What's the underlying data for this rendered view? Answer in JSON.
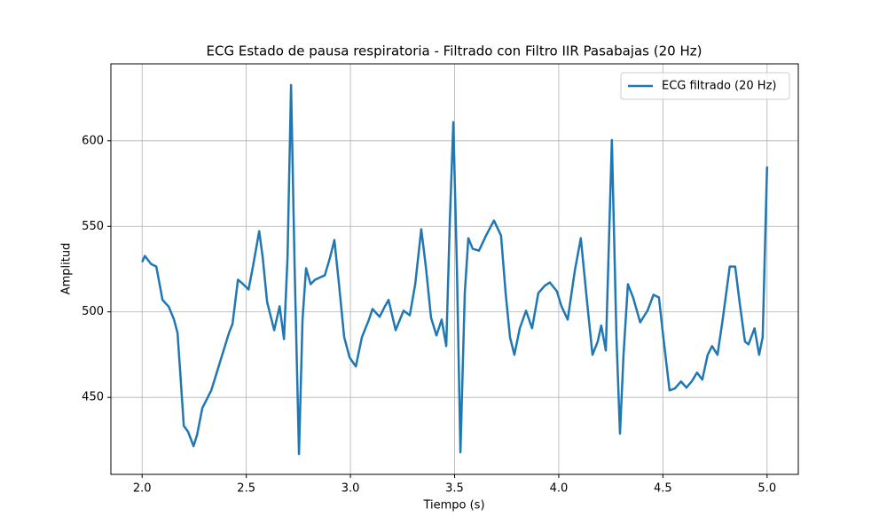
{
  "chart_data": {
    "type": "line",
    "title": "ECG Estado de pausa respiratoria - Filtrado con Filtro IIR Pasabajas (20 Hz)",
    "x_label": "Tiempo (s)",
    "y_label": "Amplitud",
    "xlim": [
      1.85,
      5.15
    ],
    "ylim": [
      405,
      645
    ],
    "xticks": [
      {
        "value": 2,
        "label": "2.0"
      },
      2.5,
      {
        "value": 3,
        "label": "3.0"
      },
      3.5,
      {
        "value": 4,
        "label": "4.0"
      },
      4.5,
      {
        "value": 5,
        "label": "5.0"
      }
    ],
    "yticks": [
      450,
      500,
      550,
      600
    ],
    "grid": true,
    "legend": "upper right",
    "x": [
      2.0,
      2.013,
      2.043,
      2.068,
      2.098,
      2.128,
      2.153,
      2.17,
      2.183,
      2.2,
      2.221,
      2.247,
      2.264,
      2.289,
      2.332,
      2.374,
      2.417,
      2.434,
      2.46,
      2.485,
      2.511,
      2.532,
      2.562,
      2.579,
      2.6,
      2.634,
      2.66,
      2.681,
      2.698,
      2.715,
      2.732,
      2.753,
      2.77,
      2.787,
      2.809,
      2.83,
      2.877,
      2.902,
      2.923,
      2.945,
      2.97,
      2.996,
      3.026,
      3.055,
      3.089,
      3.106,
      3.14,
      3.166,
      3.183,
      3.217,
      3.255,
      3.285,
      3.311,
      3.34,
      3.362,
      3.387,
      3.413,
      3.438,
      3.46,
      3.477,
      3.494,
      3.511,
      3.528,
      3.549,
      3.566,
      3.587,
      3.617,
      3.651,
      3.689,
      3.723,
      3.745,
      3.766,
      3.787,
      3.813,
      3.843,
      3.872,
      3.902,
      3.932,
      3.957,
      3.991,
      4.013,
      4.043,
      4.077,
      4.106,
      4.136,
      4.162,
      4.187,
      4.204,
      4.226,
      4.255,
      4.277,
      4.294,
      4.311,
      4.332,
      4.357,
      4.391,
      4.426,
      4.455,
      4.481,
      4.502,
      4.532,
      4.557,
      4.587,
      4.613,
      4.638,
      4.664,
      4.689,
      4.715,
      4.736,
      4.762,
      4.787,
      4.821,
      4.847,
      4.868,
      4.894,
      4.911,
      4.94,
      4.962,
      4.979,
      5.0
    ],
    "series": [
      {
        "name": "ECG filtrado (20 Hz)",
        "color": "#1f77b4",
        "values": [
          529.1,
          532.7,
          528,
          526.5,
          507,
          503,
          495.5,
          487.7,
          464.5,
          433.4,
          429.8,
          421.5,
          428.2,
          443.8,
          454.1,
          470.7,
          487.7,
          493,
          518.8,
          516.2,
          513.1,
          526.5,
          547.2,
          531.7,
          505.8,
          489.3,
          503.3,
          484.1,
          531.7,
          632.6,
          526.5,
          416.9,
          495.5,
          525.5,
          516.2,
          518.8,
          521.4,
          531.7,
          542,
          516.2,
          485.2,
          473.3,
          468.1,
          485.2,
          495.5,
          501.7,
          497.1,
          503.3,
          507,
          489.3,
          500.7,
          498,
          516.2,
          548.3,
          526.5,
          496.6,
          486.2,
          495.5,
          480,
          552.4,
          610.9,
          526.5,
          417.9,
          511,
          543.1,
          536.9,
          535.8,
          544.6,
          553.4,
          544.6,
          511,
          485.2,
          474.9,
          490.4,
          500.7,
          490.4,
          511,
          515.2,
          517.2,
          512.1,
          503.3,
          495.5,
          524,
          543.1,
          505.8,
          474.9,
          482.6,
          492,
          477.4,
          600.5,
          485.2,
          428.8,
          474.9,
          516.2,
          508.4,
          493.9,
          500.7,
          510,
          508.4,
          485.2,
          454.1,
          455.2,
          459.3,
          455.7,
          459.3,
          464.5,
          460.4,
          474.9,
          480,
          474.9,
          495.5,
          526.5,
          526.5,
          505.8,
          482.6,
          481,
          490.4,
          474.9,
          485.2,
          585
        ]
      }
    ]
  }
}
